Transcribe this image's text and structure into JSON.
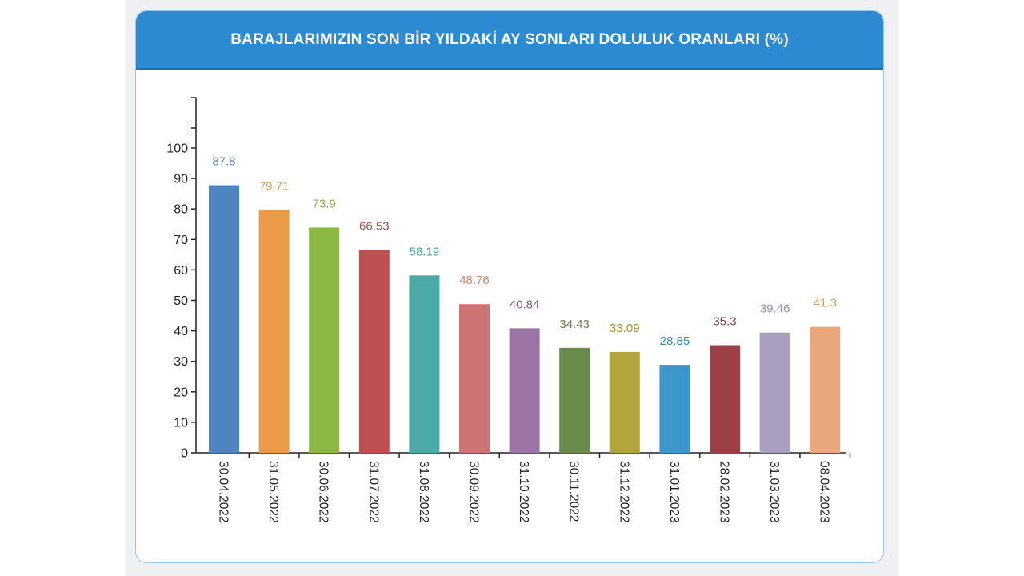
{
  "header": {
    "title": "BARAJLARIMIZIN SON BİR YILDAKİ AY SONLARI DOLULUK ORANLARI (%)"
  },
  "chart_data": {
    "type": "bar",
    "title": "BARAJLARIMIZIN SON BİR YILDAKİ AY SONLARI DOLULUK ORANLARI (%)",
    "xlabel": "",
    "ylabel": "",
    "ylim": [
      0,
      100
    ],
    "yticks": [
      "0",
      "10",
      "20",
      "30",
      "40",
      "50",
      "60",
      "70",
      "80",
      "90",
      "100"
    ],
    "grid": false,
    "categories": [
      "30.04.2022",
      "31.05.2022",
      "30.06.2022",
      "31.07.2022",
      "31.08.2022",
      "30.09.2022",
      "31.10.2022",
      "30.11.2022",
      "31.12.2022",
      "31.01.2023",
      "28.02.2023",
      "31.03.2023",
      "08.04.2023"
    ],
    "values": [
      87.8,
      79.71,
      73.9,
      66.53,
      58.19,
      48.76,
      40.84,
      34.43,
      33.09,
      28.85,
      35.3,
      39.46,
      41.3
    ],
    "value_labels": [
      "87.8",
      "79.71",
      "73.9",
      "66.53",
      "58.19",
      "48.76",
      "40.84",
      "34.43",
      "33.09",
      "28.85",
      "35.3",
      "39.46",
      "41.3"
    ],
    "bar_colors": [
      "#4e84c0",
      "#eb9a45",
      "#8db843",
      "#bf4f50",
      "#4baaa5",
      "#ce7373",
      "#9b74a5",
      "#6b8b4c",
      "#b0a63d",
      "#3e97cb",
      "#9c3f46",
      "#ab9fbf",
      "#eaa77c"
    ],
    "label_colors": [
      "#5f8aa9",
      "#c9a25e",
      "#93aa4f",
      "#a94f4f",
      "#4fa2a5",
      "#c78a6b",
      "#7e5b8f",
      "#6a7f4d",
      "#9c9a3d",
      "#3d8cb4",
      "#7a3a43",
      "#9e8fb3",
      "#d9a05d"
    ]
  }
}
